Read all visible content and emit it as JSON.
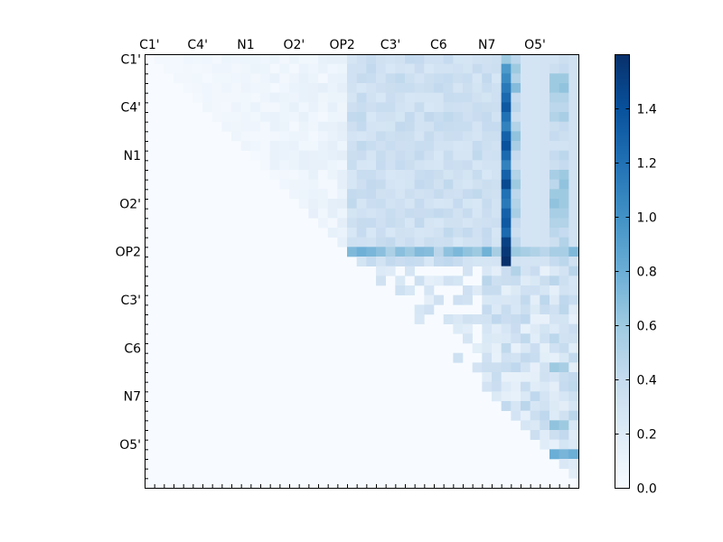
{
  "chart_data": {
    "type": "heatmap",
    "title": "",
    "xlabel": "",
    "ylabel": "",
    "matrix_size": 45,
    "labels": [
      "C1'",
      "C4'",
      "N1",
      "O2'",
      "OP2",
      "C3'",
      "C6",
      "N7",
      "O5'"
    ],
    "label_indices": [
      0,
      5,
      10,
      15,
      20,
      25,
      30,
      35,
      40
    ],
    "upper_triangle_only": true,
    "colormap": "Blues",
    "colorbar": {
      "min": 0.0,
      "max": 1.6,
      "ticks": [
        0.0,
        0.2,
        0.4,
        0.6,
        0.8,
        1.0,
        1.2,
        1.4
      ]
    },
    "notes_hidden": "",
    "highlight_columns": [
      {
        "index": 37,
        "values": [
          0.6,
          0.95,
          1.05,
          1.15,
          1.25,
          1.35,
          1.2,
          1.1,
          1.3,
          1.4,
          1.25,
          1.1,
          1.3,
          1.45,
          1.2,
          1.15,
          1.3,
          1.35,
          1.25,
          1.5,
          1.55,
          1.6
        ]
      },
      {
        "index": 38,
        "values": [
          0.45,
          0.6,
          0.5,
          0.7,
          0.4,
          0.45,
          0.35,
          0.5,
          0.65,
          0.55,
          0.4,
          0.35,
          0.5,
          0.6,
          0.45,
          0.5,
          0.55,
          0.4,
          0.35,
          0.45,
          0.6,
          0.3,
          0.5
        ]
      },
      {
        "index": 42,
        "values": [
          0.3,
          0.35,
          0.6,
          0.6,
          0.5,
          0.45,
          0.5,
          0.35,
          0.4,
          0.3,
          0.4,
          0.35,
          0.55,
          0.45,
          0.6,
          0.65,
          0.55,
          0.5,
          0.45,
          0.35,
          0.55,
          0.4
        ]
      },
      {
        "index": 43,
        "values": [
          0.35,
          0.4,
          0.6,
          0.65,
          0.5,
          0.45,
          0.55,
          0.4,
          0.35,
          0.3,
          0.45,
          0.4,
          0.6,
          0.65,
          0.6,
          0.6,
          0.55,
          0.5,
          0.4,
          0.5,
          0.55,
          0.45
        ]
      }
    ]
  }
}
